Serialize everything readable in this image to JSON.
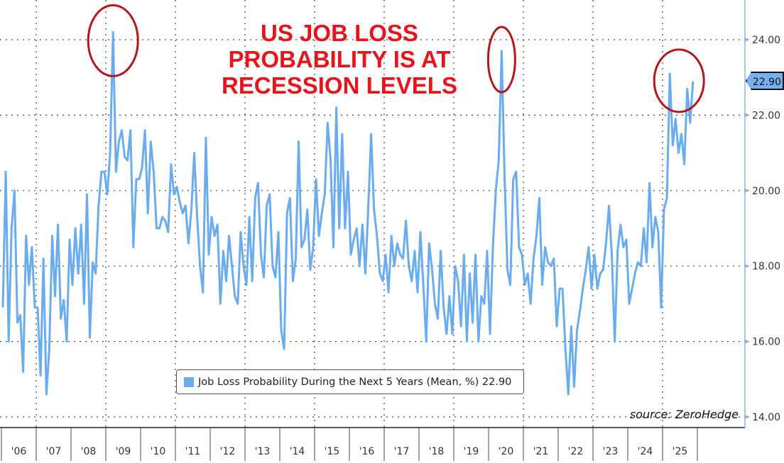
{
  "chart_data": {
    "type": "line",
    "title": "US JOB LOSS PROBABILITY IS AT RECESSION LEVELS",
    "title_lines": [
      "US JOB LOSS",
      "PROBABILITY IS AT",
      "RECESSION LEVELS"
    ],
    "source": "source: ZeroHedge",
    "legend": "Job Loss Probability During the Next 5 Years (Mean, %) 22.90",
    "legend_position": "bottom-center",
    "last_value_label": "22.90",
    "y_ticks": [
      "14.00",
      "16.00",
      "18.00",
      "20.00",
      "22.00",
      "24.00"
    ],
    "ylim": [
      13.7,
      25.0
    ],
    "x_tick_labels": [
      "'06",
      "'07",
      "'08",
      "'09",
      "'10",
      "'11",
      "'12",
      "'13",
      "'14",
      "'15",
      "'16",
      "'17",
      "'18",
      "'19",
      "'20",
      "'21",
      "'22",
      "'23",
      "'24",
      "'25"
    ],
    "x_start_year": 2006,
    "grid": true,
    "colors": {
      "line": "#6aacee",
      "title": "#e8141b",
      "circle": "#b5161b"
    },
    "highlighted_years": [
      2009,
      2020,
      2025
    ],
    "series": [
      {
        "name": "Job Loss Probability During the Next 5 Years (Mean, %)",
        "monthly_values": [
          16.9,
          20.5,
          16.0,
          19.0,
          20.0,
          16.5,
          16.7,
          15.2,
          18.8,
          17.5,
          18.5,
          16.9,
          16.9,
          15.1,
          18.2,
          14.6,
          15.8,
          18.8,
          17.2,
          19.1,
          16.6,
          17.1,
          16.0,
          18.7,
          17.5,
          19.0,
          17.8,
          19.1,
          17.0,
          19.9,
          16.1,
          18.1,
          17.8,
          19.6,
          20.5,
          20.5,
          19.9,
          21.0,
          24.2,
          20.5,
          21.3,
          21.6,
          20.9,
          20.8,
          21.6,
          18.5,
          20.3,
          20.3,
          20.6,
          21.6,
          19.4,
          21.3,
          20.5,
          19.0,
          19.0,
          19.3,
          19.2,
          18.9,
          20.7,
          19.9,
          20.1,
          19.7,
          19.4,
          19.6,
          18.6,
          19.5,
          21.0,
          19.3,
          18.0,
          17.3,
          21.4,
          18.3,
          19.3,
          18.8,
          19.1,
          17.0,
          18.4,
          17.6,
          18.8,
          18.0,
          17.2,
          17.0,
          18.9,
          18.0,
          17.5,
          19.3,
          17.6,
          19.8,
          20.2,
          18.3,
          17.7,
          19.6,
          19.9,
          18.0,
          17.7,
          18.9,
          16.3,
          15.8,
          19.4,
          19.8,
          17.6,
          18.2,
          21.3,
          18.5,
          18.7,
          19.5,
          17.9,
          18.5,
          20.3,
          18.8,
          19.4,
          19.9,
          21.8,
          20.8,
          18.5,
          22.2,
          19.0,
          21.5,
          19.0,
          20.5,
          18.3,
          18.7,
          19.0,
          18.0,
          19.1,
          17.8,
          19.5,
          21.5,
          19.5,
          18.8,
          17.8,
          17.6,
          18.3,
          17.3,
          18.8,
          18.0,
          18.6,
          18.3,
          18.2,
          19.2,
          18.0,
          17.6,
          18.4,
          17.3,
          18.9,
          17.5,
          16.0,
          18.6,
          17.9,
          17.0,
          16.6,
          18.4,
          16.9,
          16.2,
          17.2,
          16.2,
          18.0,
          17.6,
          16.4,
          18.3,
          16.0,
          17.8,
          16.5,
          18.3,
          16.0,
          17.2,
          17.0,
          18.4,
          16.2,
          18.5,
          20.0,
          20.8,
          23.7,
          20.4,
          17.9,
          17.5,
          20.3,
          20.5,
          18.5,
          18.3,
          17.5,
          17.8,
          17.0,
          18.2,
          18.8,
          19.8,
          17.5,
          18.5,
          18.1,
          18.0,
          18.2,
          16.4,
          17.4,
          17.4,
          15.8,
          14.6,
          16.4,
          14.8,
          16.3,
          16.8,
          17.4,
          17.9,
          18.5,
          17.4,
          18.3,
          17.4,
          17.8,
          17.9,
          18.6,
          19.6,
          18.3,
          16.0,
          18.4,
          19.1,
          18.5,
          18.7,
          17.0,
          17.4,
          17.8,
          18.1,
          18.0,
          19.0,
          18.1,
          20.2,
          18.5,
          19.3,
          18.9,
          16.9,
          19.5,
          19.8,
          23.1,
          21.2,
          21.9,
          21.0,
          21.5,
          20.7,
          22.7,
          21.8,
          22.9
        ]
      }
    ]
  }
}
